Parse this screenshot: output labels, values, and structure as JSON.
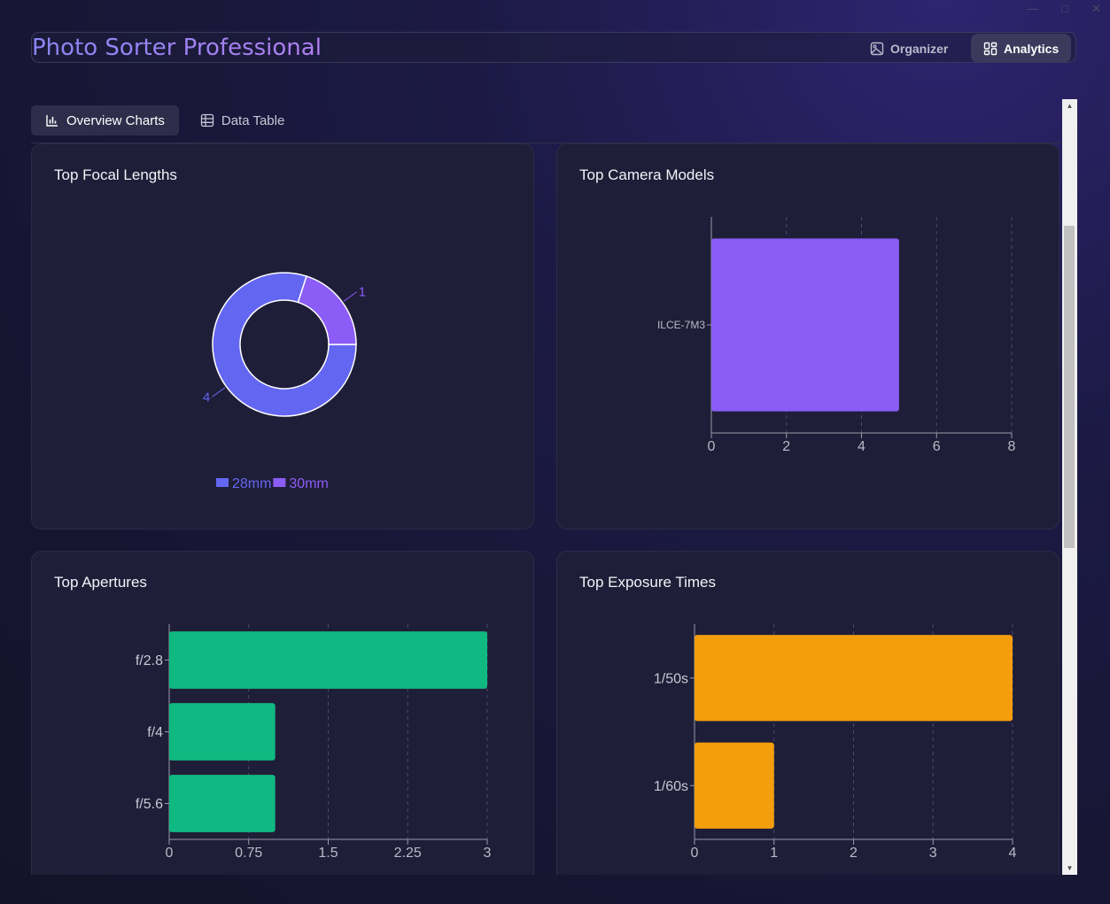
{
  "app": {
    "title": "Photo Sorter Professional",
    "nav": [
      {
        "label": "Organizer",
        "icon": "image-icon",
        "active": false
      },
      {
        "label": "Analytics",
        "icon": "dashboard-grid-icon",
        "active": true
      }
    ]
  },
  "subtabs": [
    {
      "label": "Overview Charts",
      "icon": "bar-chart-icon",
      "active": true
    },
    {
      "label": "Data Table",
      "icon": "table-icon",
      "active": false
    }
  ],
  "colors": {
    "indigo": "#6366f1",
    "violet": "#8b5cf6",
    "green": "#10b981",
    "amber": "#f59e0b"
  },
  "chart_data": [
    {
      "type": "pie",
      "title": "Top Focal Lengths",
      "categories": [
        "28mm",
        "30mm"
      ],
      "values": [
        4,
        1
      ],
      "colors": [
        "#6366f1",
        "#8b5cf6"
      ],
      "legend": "bottom"
    },
    {
      "type": "bar",
      "orientation": "horizontal",
      "title": "Top Camera Models",
      "categories": [
        "ILCE-7M3"
      ],
      "values": [
        5
      ],
      "xlim": [
        0,
        8
      ],
      "xticks": [
        "0",
        "2",
        "4",
        "6",
        "8"
      ],
      "color": "#8b5cf6",
      "grid": true
    },
    {
      "type": "bar",
      "orientation": "horizontal",
      "title": "Top Apertures",
      "categories": [
        "f/2.8",
        "f/4",
        "f/5.6"
      ],
      "values": [
        3,
        1,
        1
      ],
      "xlim": [
        0,
        3
      ],
      "xticks": [
        "0",
        "0.75",
        "1.5",
        "2.25",
        "3"
      ],
      "color": "#10b981",
      "grid": true
    },
    {
      "type": "bar",
      "orientation": "horizontal",
      "title": "Top Exposure Times",
      "categories": [
        "1/50s",
        "1/60s"
      ],
      "values": [
        4,
        1
      ],
      "xlim": [
        0,
        4
      ],
      "xticks": [
        "0",
        "1",
        "2",
        "3",
        "4"
      ],
      "color": "#f59e0b",
      "grid": true
    }
  ]
}
